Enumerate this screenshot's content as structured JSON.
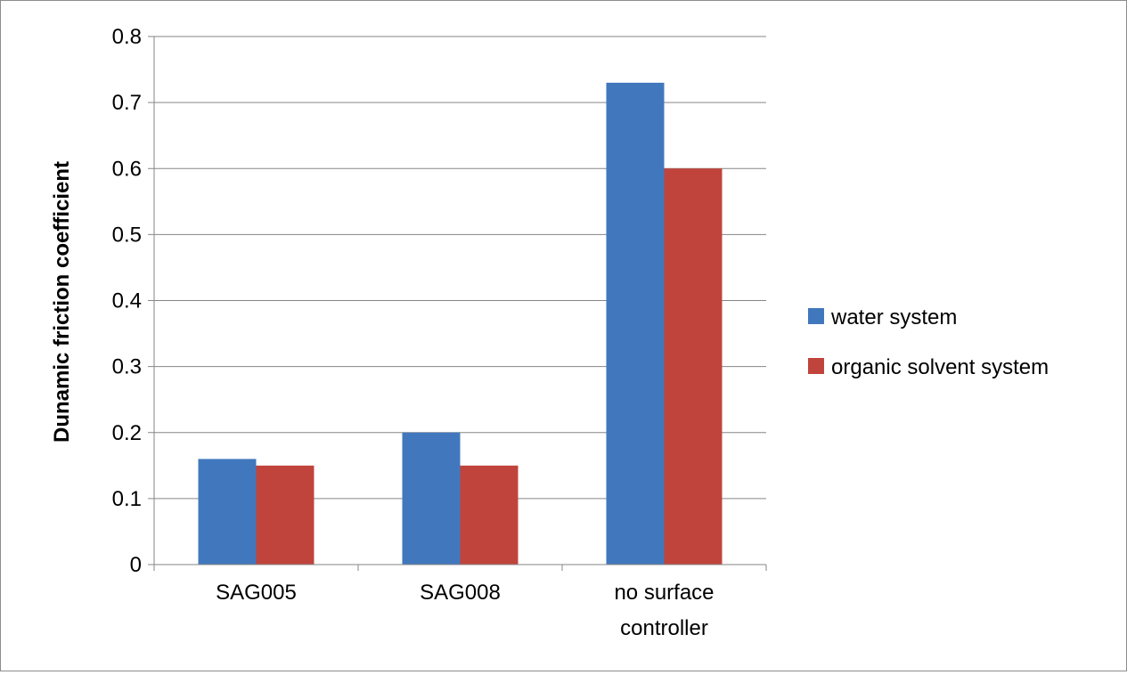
{
  "chart_data": {
    "type": "bar",
    "title": "",
    "xlabel": "",
    "ylabel": "Dunamic friction coefficient",
    "ylim": [
      0,
      0.8
    ],
    "yticks": [
      0,
      0.1,
      0.2,
      0.3,
      0.4,
      0.5,
      0.6,
      0.7,
      0.8
    ],
    "ytick_labels": [
      "0",
      "0.1",
      "0.2",
      "0.3",
      "0.4",
      "0.5",
      "0.6",
      "0.7",
      "0.8"
    ],
    "categories": [
      [
        "SAG005"
      ],
      [
        "SAG008"
      ],
      [
        "no surface",
        "controller"
      ]
    ],
    "series": [
      {
        "name": "water system",
        "color": "#4178bd",
        "values": [
          0.16,
          0.2,
          0.73
        ]
      },
      {
        "name": "organic solvent system",
        "color": "#c0443c",
        "values": [
          0.15,
          0.15,
          0.6
        ]
      }
    ],
    "grid": true,
    "legend_position": "right"
  }
}
